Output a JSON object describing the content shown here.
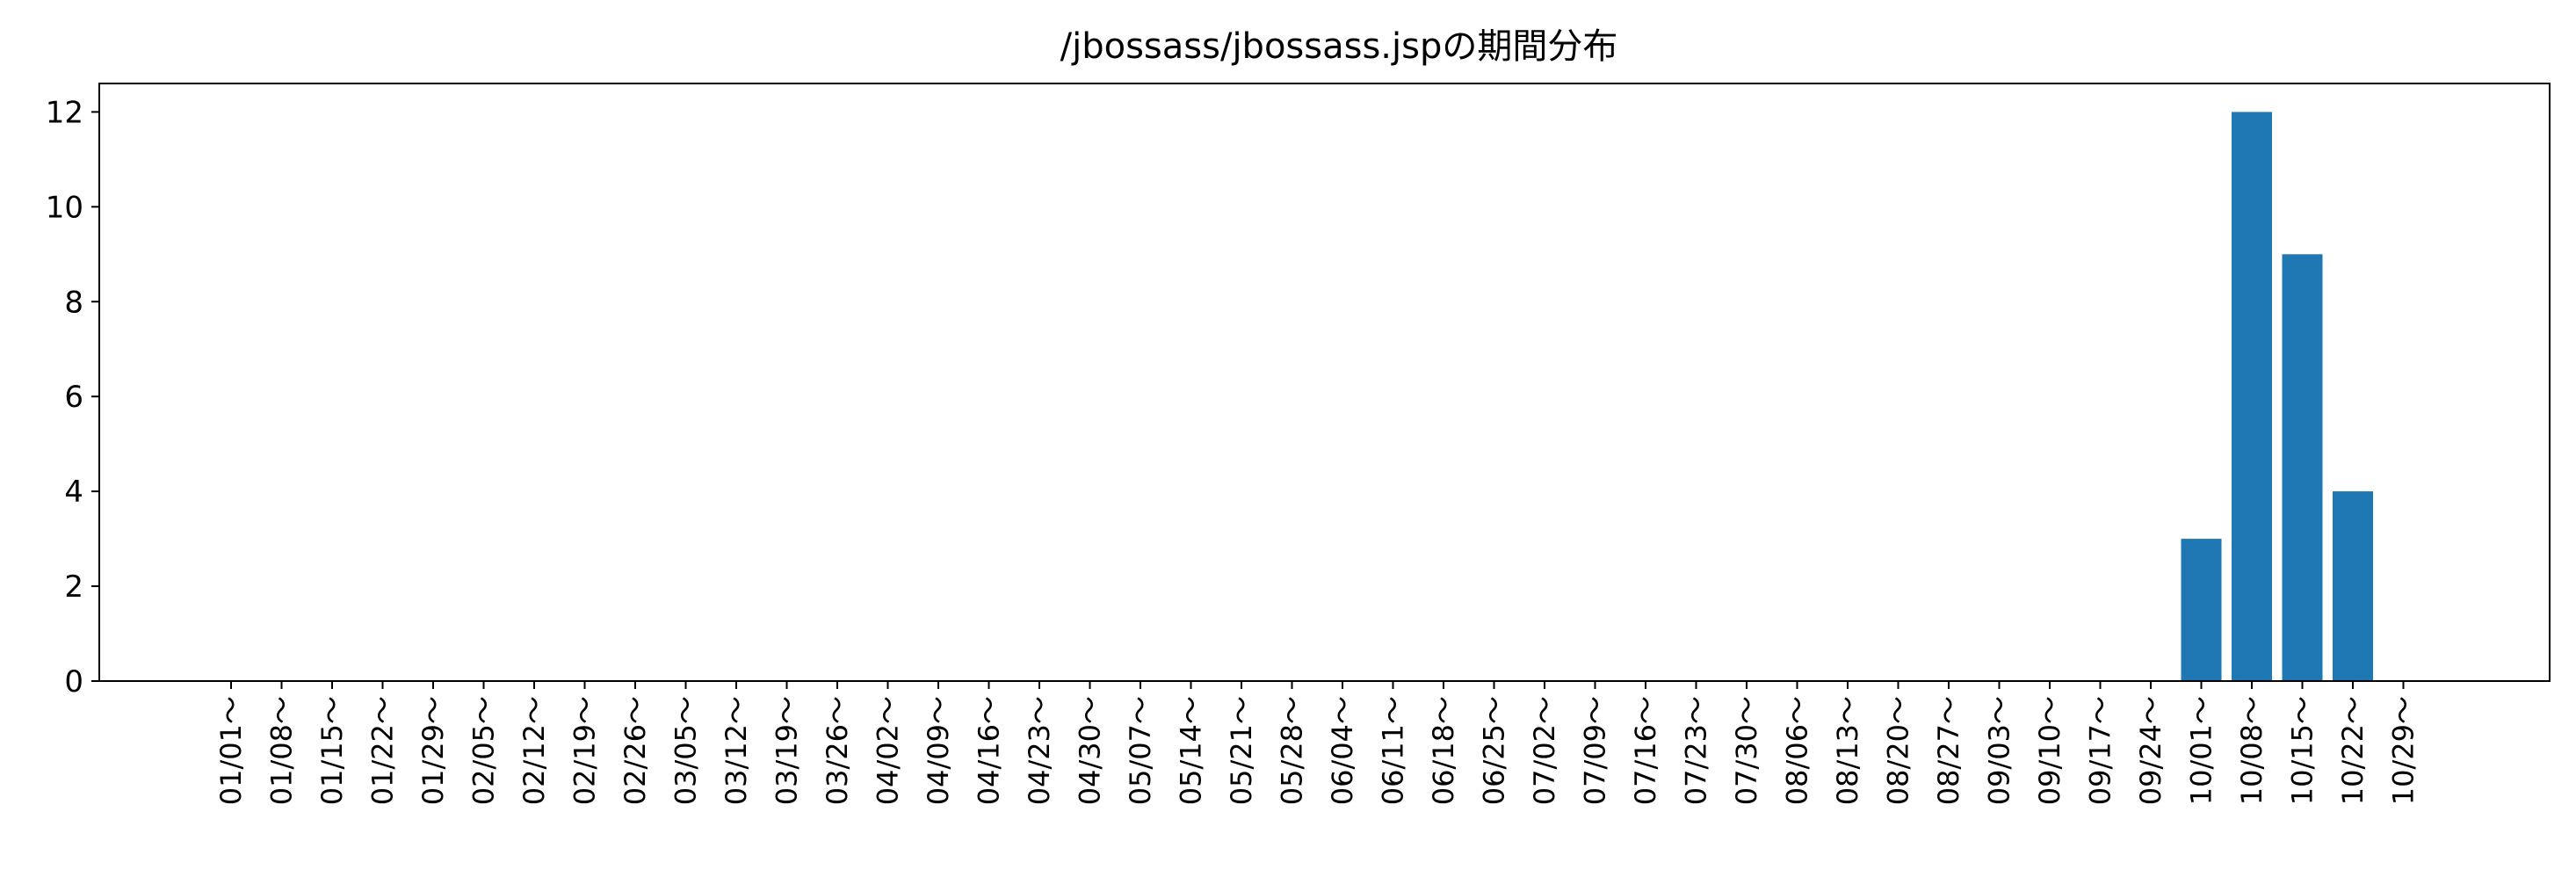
{
  "chart_data": {
    "type": "bar",
    "title": "/jbossass/jbossass.jspの期間分布",
    "xlabel": "",
    "ylabel": "",
    "categories": [
      "01/01～",
      "01/08～",
      "01/15～",
      "01/22～",
      "01/29～",
      "02/05～",
      "02/12～",
      "02/19～",
      "02/26～",
      "03/05～",
      "03/12～",
      "03/19～",
      "03/26～",
      "04/02～",
      "04/09～",
      "04/16～",
      "04/23～",
      "04/30～",
      "05/07～",
      "05/14～",
      "05/21～",
      "05/28～",
      "06/04～",
      "06/11～",
      "06/18～",
      "06/25～",
      "07/02～",
      "07/09～",
      "07/16～",
      "07/23～",
      "07/30～",
      "08/06～",
      "08/13～",
      "08/20～",
      "08/27～",
      "09/03～",
      "09/10～",
      "09/17～",
      "09/24～",
      "10/01～",
      "10/08～",
      "10/15～",
      "10/22～",
      "10/29～"
    ],
    "values": [
      0,
      0,
      0,
      0,
      0,
      0,
      0,
      0,
      0,
      0,
      0,
      0,
      0,
      0,
      0,
      0,
      0,
      0,
      0,
      0,
      0,
      0,
      0,
      0,
      0,
      0,
      0,
      0,
      0,
      0,
      0,
      0,
      0,
      0,
      0,
      0,
      0,
      0,
      0,
      3,
      12,
      9,
      4,
      0
    ],
    "yticks": [
      0,
      2,
      4,
      6,
      8,
      10,
      12
    ],
    "ylim": [
      0,
      12.6
    ],
    "grid": false,
    "legend": "none",
    "bar_color": "#1f77b4"
  }
}
